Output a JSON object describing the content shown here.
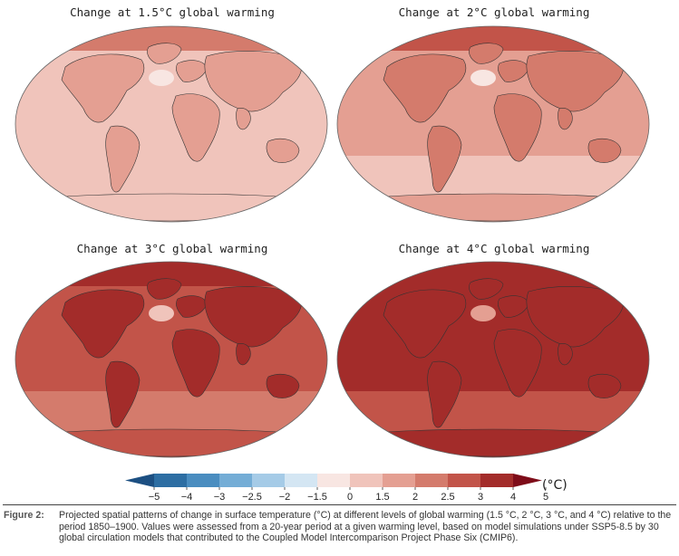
{
  "panels": [
    {
      "title": "Change at 1.5°C global warming",
      "level": 1.5
    },
    {
      "title": "Change at 2°C global warming",
      "level": 2
    },
    {
      "title": "Change at 3°C global warming",
      "level": 3
    },
    {
      "title": "Change at 4°C global warming",
      "level": 4
    }
  ],
  "colorbar": {
    "ticks": [
      "−5",
      "−4",
      "−3",
      "−2.5",
      "−2",
      "−1.5",
      "0",
      "1.5",
      "2",
      "2.5",
      "3",
      "4",
      "5"
    ],
    "unit": "(°C)",
    "colors": [
      "#1c4f82",
      "#2d6ea3",
      "#4a8dc0",
      "#74add6",
      "#a5cbe7",
      "#d4e6f3",
      "#f8e6e2",
      "#f0c4bb",
      "#e49f92",
      "#d47b6c",
      "#c25449",
      "#a32c2a",
      "#7e0c19"
    ]
  },
  "caption": {
    "label": "Figure 2:",
    "text": "Projected spatial patterns of change in surface temperature (°C) at different levels of global warming (1.5 °C, 2 °C, 3 °C, and 4 °C) relative to the period 1850–1900. Values were assessed from a 20-year period at a given warming level, based on model simulations under SSP5-8.5 by 30 global circulation models that contributed to the Coupled Model Intercomparison Project Phase Six (CMIP6)."
  }
}
